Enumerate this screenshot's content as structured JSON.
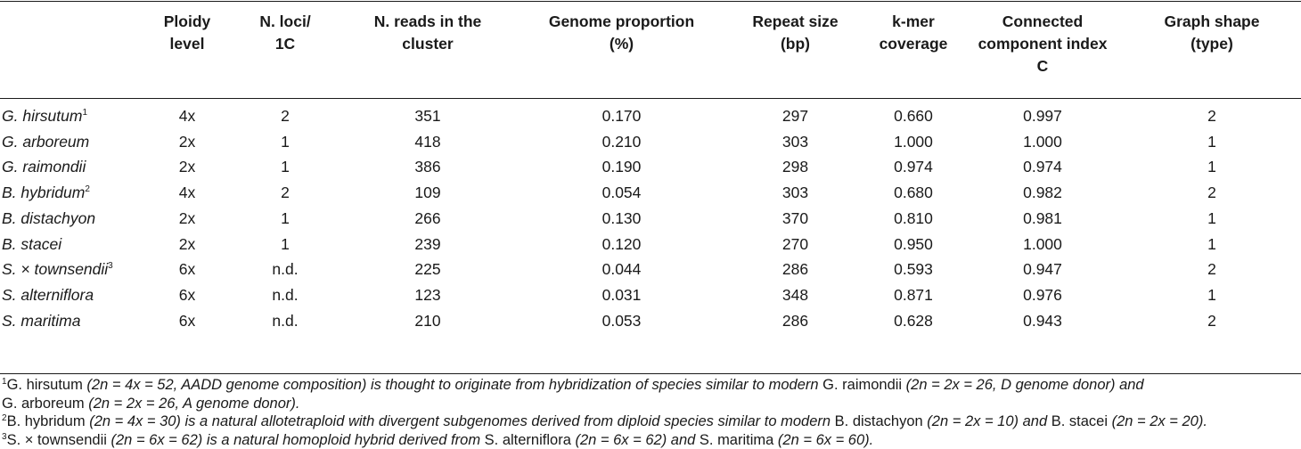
{
  "columns": [
    {
      "line1": "",
      "line2": "",
      "line3": ""
    },
    {
      "line1": "Ploidy",
      "line2": "level",
      "line3": ""
    },
    {
      "line1": "N. loci/",
      "line2": "1C",
      "line3": ""
    },
    {
      "line1": "N. reads in the",
      "line2": "cluster",
      "line3": ""
    },
    {
      "line1": "Genome proportion",
      "line2": "(%)",
      "line3": ""
    },
    {
      "line1": "Repeat size",
      "line2": "(bp)",
      "line3": ""
    },
    {
      "line1": "k-mer",
      "line2": "coverage",
      "line3": ""
    },
    {
      "line1": "Connected",
      "line2": "component index",
      "line3": "C"
    },
    {
      "line1": "Graph shape",
      "line2": "(type)",
      "line3": ""
    }
  ],
  "rows": [
    {
      "species": "G. hirsutum",
      "note": "1",
      "ploidy": "4x",
      "loci": "2",
      "reads": "351",
      "genome_prop": "0.170",
      "repeat_size": "297",
      "kmer": "0.660",
      "cci": "0.997",
      "graph_type": "2"
    },
    {
      "species": "G. arboreum",
      "note": "",
      "ploidy": "2x",
      "loci": "1",
      "reads": "418",
      "genome_prop": "0.210",
      "repeat_size": "303",
      "kmer": "1.000",
      "cci": "1.000",
      "graph_type": "1"
    },
    {
      "species": "G. raimondii",
      "note": "",
      "ploidy": "2x",
      "loci": "1",
      "reads": "386",
      "genome_prop": "0.190",
      "repeat_size": "298",
      "kmer": "0.974",
      "cci": "0.974",
      "graph_type": "1"
    },
    {
      "species": "B. hybridum",
      "note": "2",
      "ploidy": "4x",
      "loci": "2",
      "reads": "109",
      "genome_prop": "0.054",
      "repeat_size": "303",
      "kmer": "0.680",
      "cci": "0.982",
      "graph_type": "2"
    },
    {
      "species": "B. distachyon",
      "note": "",
      "ploidy": "2x",
      "loci": "1",
      "reads": "266",
      "genome_prop": "0.130",
      "repeat_size": "370",
      "kmer": "0.810",
      "cci": "0.981",
      "graph_type": "1"
    },
    {
      "species": "B. stacei",
      "note": "",
      "ploidy": "2x",
      "loci": "1",
      "reads": "239",
      "genome_prop": "0.120",
      "repeat_size": "270",
      "kmer": "0.950",
      "cci": "1.000",
      "graph_type": "1"
    },
    {
      "species": "S. × townsendii",
      "note": "3",
      "ploidy": "6x",
      "loci": "n.d.",
      "reads": "225",
      "genome_prop": "0.044",
      "repeat_size": "286",
      "kmer": "0.593",
      "cci": "0.947",
      "graph_type": "2"
    },
    {
      "species": "S. alterniflora",
      "note": "",
      "ploidy": "6x",
      "loci": "n.d.",
      "reads": "123",
      "genome_prop": "0.031",
      "repeat_size": "348",
      "kmer": "0.871",
      "cci": "0.976",
      "graph_type": "1"
    },
    {
      "species": "S. maritima",
      "note": "",
      "ploidy": "6x",
      "loci": "n.d.",
      "reads": "210",
      "genome_prop": "0.053",
      "repeat_size": "286",
      "kmer": "0.628",
      "cci": "0.943",
      "graph_type": "2"
    }
  ],
  "footnotes": {
    "fn1": {
      "mark": "1",
      "line1": [
        {
          "t": "G. hirsutum",
          "up": true
        },
        {
          "t": " (2n = 4x = 52, AADD genome composition) is thought to originate from hybridization of species similar to modern ",
          "up": false
        },
        {
          "t": "G. raimondii",
          "up": true
        },
        {
          "t": " (2n = 2x = 26, D genome donor) and",
          "up": false
        }
      ],
      "line2": [
        {
          "t": "G. arboreum",
          "up": true
        },
        {
          "t": " (2n = 2x = 26, A genome donor).",
          "up": false
        }
      ]
    },
    "fn2": {
      "mark": "2",
      "line1": [
        {
          "t": "B. hybridum",
          "up": true
        },
        {
          "t": " (2n = 4x = 30) is a natural allotetraploid with divergent subgenomes derived from diploid species similar to modern ",
          "up": false
        },
        {
          "t": "B. distachyon",
          "up": true
        },
        {
          "t": " (2n = 2x = 10) and ",
          "up": false
        },
        {
          "t": "B. stacei",
          "up": true
        },
        {
          "t": " (2n = 2x = 20).",
          "up": false
        }
      ]
    },
    "fn3": {
      "mark": "3",
      "line1": [
        {
          "t": "S. × townsendii",
          "up": true
        },
        {
          "t": " (2n = 6x = 62) is a natural homoploid hybrid derived from ",
          "up": false
        },
        {
          "t": "S. alterniflora",
          "up": true
        },
        {
          "t": " (2n = 6x = 62) and ",
          "up": false
        },
        {
          "t": "S. maritima",
          "up": true
        },
        {
          "t": " (2n = 6x = 60).",
          "up": false
        }
      ]
    }
  }
}
